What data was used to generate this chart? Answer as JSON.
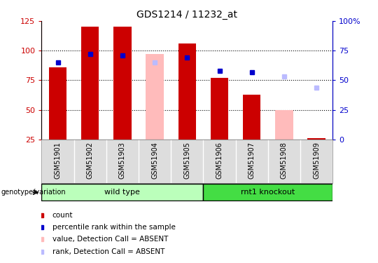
{
  "title": "GDS1214 / 11232_at",
  "samples": [
    "GSM51901",
    "GSM51902",
    "GSM51903",
    "GSM51904",
    "GSM51905",
    "GSM51906",
    "GSM51907",
    "GSM51908",
    "GSM51909"
  ],
  "wt_indices": [
    0,
    1,
    2,
    3,
    4
  ],
  "ko_indices": [
    5,
    6,
    7,
    8
  ],
  "wt_label": "wild type",
  "ko_label": "rnt1 knockout",
  "wt_color": "#bbffbb",
  "ko_color": "#44dd44",
  "count_values": [
    86,
    120,
    120,
    null,
    106,
    77,
    63,
    null,
    null
  ],
  "count_color": "#cc0000",
  "percentile_values": [
    65,
    72,
    71,
    null,
    69,
    58,
    57,
    null,
    null
  ],
  "percentile_color": "#0000cc",
  "absent_value_values": [
    null,
    null,
    null,
    97,
    null,
    null,
    null,
    50,
    null
  ],
  "absent_value_color": "#ffbbbb",
  "absent_rank_values": [
    null,
    null,
    null,
    65,
    null,
    null,
    null,
    53,
    44
  ],
  "absent_rank_color": "#bbbbff",
  "ylim_left": [
    25,
    125
  ],
  "ylim_right": [
    0,
    100
  ],
  "yticks_left": [
    25,
    50,
    75,
    100,
    125
  ],
  "yticks_right": [
    0,
    25,
    50,
    75,
    100
  ],
  "ytick_labels_left": [
    "25",
    "50",
    "75",
    "100",
    "125"
  ],
  "ytick_labels_right": [
    "0",
    "25",
    "50",
    "75",
    "100%"
  ],
  "bar_width": 0.55,
  "left_axis_color": "#cc0000",
  "right_axis_color": "#0000cc",
  "gridline_yticks": [
    50,
    75,
    100
  ],
  "geno_label": "genotype/variation"
}
